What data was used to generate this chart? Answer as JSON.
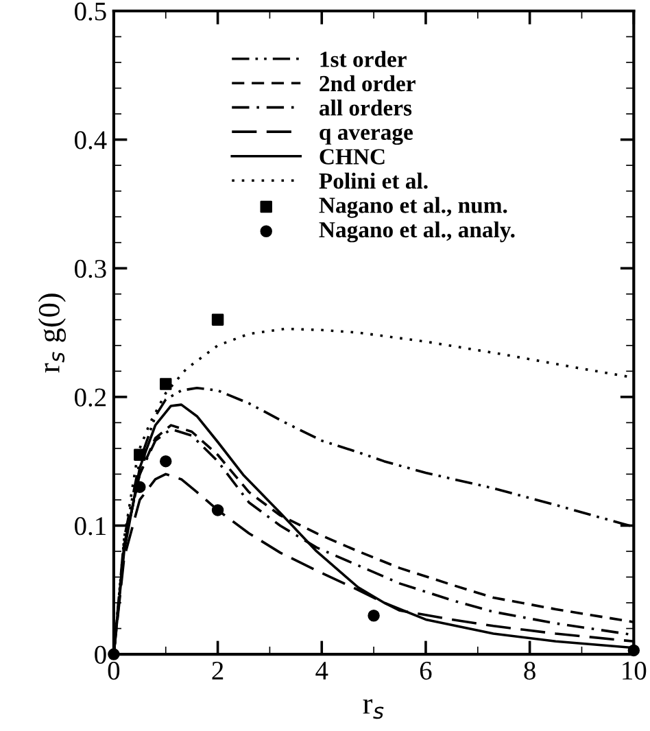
{
  "chart_data": {
    "type": "line",
    "xlabel": "r$_{s}$",
    "ylabel": "r$_{s}$ g(0)",
    "xlim": [
      0,
      10
    ],
    "ylim": [
      0,
      0.5
    ],
    "xticks": [
      0,
      2,
      4,
      6,
      8,
      10
    ],
    "yticks": [
      0,
      0.1,
      0.2,
      0.3,
      0.4,
      0.5
    ],
    "legend": "top",
    "grid": false,
    "series": [
      {
        "name": "1st order",
        "line_style": "dashdotdot",
        "color": "#000000",
        "x": [
          0,
          0.2,
          0.5,
          0.8,
          1.0,
          1.3,
          1.6,
          2.0,
          2.6,
          3.3,
          4.0,
          4.7,
          5.2,
          6.0,
          7.3,
          8.5,
          10
        ],
        "values": [
          0,
          0.09,
          0.15,
          0.185,
          0.198,
          0.205,
          0.207,
          0.205,
          0.195,
          0.18,
          0.166,
          0.157,
          0.15,
          0.141,
          0.129,
          0.116,
          0.099
        ]
      },
      {
        "name": "2nd order",
        "line_style": "dashed",
        "color": "#000000",
        "x": [
          0,
          0.2,
          0.5,
          0.8,
          1.1,
          1.5,
          2.0,
          2.6,
          3.2,
          3.9,
          4.7,
          5.5,
          6.5,
          7.3,
          8.5,
          10
        ],
        "values": [
          0,
          0.085,
          0.14,
          0.168,
          0.178,
          0.173,
          0.155,
          0.126,
          0.108,
          0.094,
          0.08,
          0.067,
          0.054,
          0.044,
          0.035,
          0.025
        ]
      },
      {
        "name": "all orders",
        "line_style": "dashdot",
        "color": "#000000",
        "x": [
          0,
          0.2,
          0.5,
          0.8,
          1.1,
          1.5,
          2.0,
          2.6,
          3.2,
          3.9,
          4.7,
          5.5,
          6.5,
          7.3,
          8.5,
          10
        ],
        "values": [
          0,
          0.085,
          0.14,
          0.166,
          0.175,
          0.17,
          0.15,
          0.118,
          0.1,
          0.083,
          0.069,
          0.055,
          0.042,
          0.033,
          0.024,
          0.015
        ]
      },
      {
        "name": "q average",
        "line_style": "longdash",
        "color": "#000000",
        "x": [
          0,
          0.2,
          0.5,
          0.8,
          1.0,
          1.3,
          1.6,
          2.0,
          2.6,
          3.2,
          3.9,
          4.7,
          5.5,
          6.5,
          7.3,
          8.5,
          10
        ],
        "values": [
          0,
          0.075,
          0.12,
          0.136,
          0.14,
          0.136,
          0.126,
          0.112,
          0.094,
          0.079,
          0.065,
          0.05,
          0.034,
          0.027,
          0.022,
          0.016,
          0.01
        ]
      },
      {
        "name": "CHNC",
        "line_style": "solid",
        "color": "#000000",
        "x": [
          0,
          0.2,
          0.5,
          0.8,
          1.1,
          1.3,
          1.6,
          2.0,
          2.5,
          3.2,
          3.9,
          4.7,
          5.2,
          6.0,
          7.3,
          8.5,
          10
        ],
        "values": [
          0,
          0.08,
          0.145,
          0.178,
          0.193,
          0.194,
          0.185,
          0.165,
          0.139,
          0.11,
          0.08,
          0.052,
          0.04,
          0.027,
          0.016,
          0.01,
          0.005
        ]
      },
      {
        "name": "Polini et al.",
        "line_style": "dotted",
        "color": "#000000",
        "x": [
          0,
          0.2,
          0.47,
          0.7,
          1.0,
          1.4,
          2.0,
          2.6,
          3.3,
          4.0,
          4.7,
          6.0,
          7.5,
          9.0,
          10
        ],
        "values": [
          0,
          0.09,
          0.157,
          0.18,
          0.203,
          0.222,
          0.24,
          0.249,
          0.253,
          0.252,
          0.25,
          0.243,
          0.233,
          0.222,
          0.215
        ]
      },
      {
        "name": "Nagano et al., num.",
        "type": "scatter",
        "marker": "square",
        "color": "#000000",
        "x": [
          0.5,
          1,
          2
        ],
        "values": [
          0.155,
          0.21,
          0.26
        ]
      },
      {
        "name": "Nagano et al., analy.",
        "type": "scatter",
        "marker": "circle",
        "color": "#000000",
        "x": [
          0,
          0.5,
          1,
          2,
          5,
          10
        ],
        "values": [
          0,
          0.13,
          0.15,
          0.112,
          0.03,
          0.003
        ]
      }
    ]
  }
}
